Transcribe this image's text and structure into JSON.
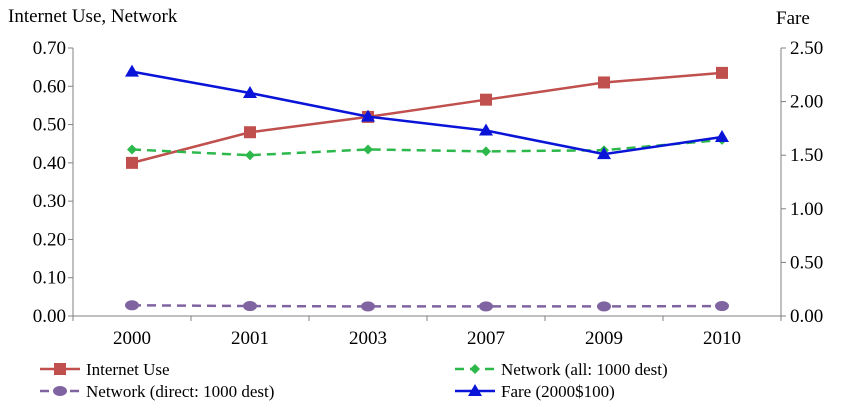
{
  "chart_data": {
    "type": "line",
    "left_axis_title": "Internet Use, Network",
    "right_axis_title": "Fare",
    "categories": [
      "2000",
      "2001",
      "2003",
      "2007",
      "2009",
      "2010"
    ],
    "y_left": {
      "min": 0,
      "max": 0.7,
      "ticks": [
        "0.00",
        "0.10",
        "0.20",
        "0.30",
        "0.40",
        "0.50",
        "0.60",
        "0.70"
      ]
    },
    "y_right": {
      "min": 0,
      "max": 2.5,
      "ticks": [
        "0.00",
        "0.50",
        "1.00",
        "1.50",
        "2.00",
        "2.50"
      ]
    },
    "grid": false,
    "legend_position": "bottom",
    "series": [
      {
        "name": "Internet Use",
        "axis": "left",
        "color": "#C0504D",
        "marker": "square",
        "dash": "solid",
        "values": [
          0.4,
          0.48,
          0.52,
          0.565,
          0.61,
          0.635
        ]
      },
      {
        "name": "Network (all: 1000 dest)",
        "axis": "left",
        "color": "#2DB84B",
        "marker": "diamond",
        "dash": "dashed",
        "values": [
          0.435,
          0.42,
          0.435,
          0.43,
          0.433,
          0.46
        ]
      },
      {
        "name": "Network (direct: 1000 dest)",
        "axis": "left",
        "color": "#8064A2",
        "marker": "circle",
        "dash": "dashed",
        "values": [
          0.028,
          0.026,
          0.025,
          0.025,
          0.025,
          0.026
        ]
      },
      {
        "name": "Fare (2000$100)",
        "axis": "right",
        "color": "#0A14D8",
        "marker": "triangle",
        "dash": "solid",
        "values": [
          2.28,
          2.08,
          1.86,
          1.73,
          1.51,
          1.67
        ]
      }
    ]
  }
}
